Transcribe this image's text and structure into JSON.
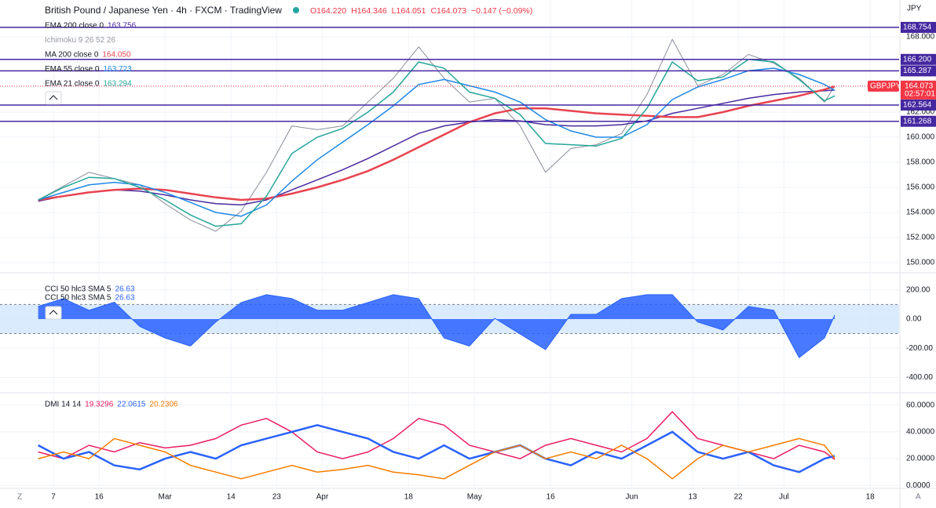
{
  "header": {
    "title": "British Pound / Japanese Yen · 4h · FXCM · TradingView",
    "ohlc": [
      "O164.220",
      "H164.346",
      "L164.051",
      "C164.073",
      "−0.147 (−0.09%)"
    ]
  },
  "ui": {
    "currency": "JPY",
    "z": "Z",
    "a": "A"
  },
  "chart_data": [
    {
      "type": "line",
      "x": [
        4,
        9,
        14,
        19,
        24,
        29,
        34,
        39,
        44,
        49,
        54,
        59,
        64,
        69,
        74,
        79,
        84,
        89,
        94,
        99,
        104,
        109,
        114,
        119,
        124,
        129,
        134,
        139,
        144,
        149,
        154,
        159,
        161
      ],
      "xlim": [
        3.9,
        173.7
      ],
      "ylim": [
        149.25,
        170.625
      ],
      "yticks": [
        {
          "value": 150,
          "label": "150.000"
        },
        {
          "value": 152,
          "label": "152.000"
        },
        {
          "value": 154,
          "label": "154.000"
        },
        {
          "value": 156,
          "label": "156.000"
        },
        {
          "value": 158,
          "label": "158.000"
        },
        {
          "value": 160,
          "label": "160.000"
        },
        {
          "value": 162,
          "label": "162.000"
        },
        {
          "value": 164,
          "label": "164.000"
        },
        {
          "value": 166,
          "label": "166.000"
        },
        {
          "value": 168,
          "label": "168.000"
        }
      ],
      "indicator_hidden": "Ichimoku 9 26 52 26",
      "close": {
        "color": "#8a8f9c",
        "values": [
          155.0,
          156.1,
          157.2,
          156.7,
          156.2,
          154.7,
          153.4,
          152.5,
          154.1,
          157.2,
          160.9,
          160.6,
          160.9,
          162.8,
          164.7,
          167.2,
          164.7,
          162.8,
          163.1,
          160.9,
          157.2,
          159.1,
          159.4,
          160.3,
          163.4,
          167.8,
          164.1,
          165.0,
          166.6,
          165.9,
          164.7,
          162.8,
          164.073
        ]
      },
      "series": [
        {
          "name": "EMA 200 close 0",
          "legend_value": "163.756",
          "color": "#4a2a9e",
          "values": [
            154.9,
            155.3,
            155.6,
            155.8,
            155.7,
            155.4,
            155.0,
            154.7,
            154.6,
            155.0,
            155.8,
            156.6,
            157.4,
            158.3,
            159.3,
            160.3,
            160.9,
            161.2,
            161.4,
            161.3,
            161.0,
            160.9,
            160.9,
            161.0,
            161.3,
            161.9,
            162.3,
            162.7,
            163.1,
            163.4,
            163.6,
            163.7,
            163.756
          ]
        },
        {
          "name": "MA 200 close 0",
          "legend_value": "164.050",
          "color": "#e8434f",
          "values": [
            155.0,
            155.3,
            155.6,
            155.8,
            155.9,
            155.8,
            155.5,
            155.2,
            155.0,
            155.1,
            155.5,
            156.0,
            156.6,
            157.3,
            158.2,
            159.2,
            160.2,
            161.2,
            161.9,
            162.3,
            162.3,
            162.1,
            161.9,
            161.8,
            161.7,
            161.6,
            161.6,
            162.0,
            162.5,
            162.9,
            163.3,
            163.8,
            164.05
          ]
        },
        {
          "name": "EMA 55 close 0",
          "legend_value": "163.723",
          "color": "#1e88e5",
          "values": [
            155.0,
            155.6,
            156.2,
            156.4,
            156.2,
            155.6,
            154.8,
            154.0,
            153.7,
            154.6,
            156.5,
            158.2,
            159.6,
            161.0,
            162.5,
            164.2,
            164.6,
            164.1,
            163.6,
            162.8,
            161.4,
            160.5,
            160.0,
            160.0,
            161.0,
            163.0,
            164.0,
            164.6,
            165.3,
            165.5,
            165.0,
            164.2,
            163.723
          ]
        },
        {
          "name": "EMA 21 close 0",
          "legend_value": "163.294",
          "color": "#26a69a",
          "values": [
            155.0,
            156.0,
            156.8,
            156.7,
            156.0,
            155.0,
            153.8,
            152.9,
            153.1,
            155.3,
            158.7,
            160.0,
            160.7,
            162.0,
            163.6,
            166.0,
            165.5,
            163.6,
            163.1,
            161.8,
            159.5,
            159.4,
            159.3,
            159.9,
            162.3,
            166.0,
            164.5,
            164.8,
            166.2,
            166.0,
            164.6,
            162.9,
            163.294
          ]
        }
      ],
      "levels": [
        {
          "value": 168.754,
          "label": "168.754"
        },
        {
          "value": 166.2,
          "label": "166.200"
        },
        {
          "value": 165.287,
          "label": "165.287"
        },
        {
          "value": 162.564,
          "label": "162.564"
        },
        {
          "value": 161.268,
          "label": "161.268"
        }
      ],
      "level_color": "#4527a0",
      "last_price": {
        "value": 164.073,
        "label": "164.073"
      },
      "symbol_tag": "GBPJPY",
      "countdown": "02:57:01",
      "last_color": "#f23645"
    },
    {
      "type": "area",
      "x": [
        4,
        9,
        14,
        19,
        24,
        29,
        34,
        39,
        44,
        49,
        54,
        59,
        64,
        69,
        74,
        79,
        84,
        89,
        94,
        99,
        104,
        109,
        114,
        119,
        124,
        129,
        134,
        139,
        144,
        149,
        154,
        159,
        161
      ],
      "xlim": [
        3.9,
        173.7
      ],
      "ylim": [
        -500,
        306
      ],
      "yticks": [
        {
          "value": 200,
          "label": "200.00"
        },
        {
          "value": 0,
          "label": "0.00"
        },
        {
          "value": -200,
          "label": "-200.00"
        },
        {
          "value": -400,
          "label": "-400.00"
        }
      ],
      "bands": [
        100,
        -100
      ],
      "band_color": "#cfe6fb",
      "series": [
        {
          "name": "CCI 50 hlc3 SMA 5",
          "legend_value": "26.63",
          "color": "#2962ff",
          "values": [
            86,
            140,
            60,
            115,
            -50,
            -130,
            -185,
            -20,
            113,
            167,
            140,
            60,
            60,
            113,
            167,
            140,
            -130,
            -185,
            5,
            -103,
            -210,
            32,
            32,
            140,
            167,
            167,
            -20,
            -75,
            86,
            60,
            -265,
            -130,
            26.63
          ]
        }
      ]
    },
    {
      "type": "line",
      "title": "DMI 14 14",
      "x": [
        4,
        9,
        14,
        19,
        24,
        29,
        34,
        39,
        44,
        49,
        54,
        59,
        64,
        69,
        74,
        79,
        84,
        89,
        94,
        99,
        104,
        109,
        114,
        119,
        124,
        129,
        134,
        139,
        144,
        149,
        154,
        159,
        161
      ],
      "xlim": [
        3.9,
        173.7
      ],
      "ylim": [
        -1,
        68
      ],
      "yticks": [
        {
          "value": 0,
          "label": "0.0000"
        },
        {
          "value": 20,
          "label": "20.0000"
        },
        {
          "value": 40,
          "label": "40.0000"
        },
        {
          "value": 60,
          "label": "60.0000"
        }
      ],
      "xticks": [
        {
          "value": 7,
          "label": "7"
        },
        {
          "value": 16,
          "label": "16"
        },
        {
          "value": 29,
          "label": "Mar"
        },
        {
          "value": 42,
          "label": "14"
        },
        {
          "value": 51,
          "label": "23"
        },
        {
          "value": 60,
          "label": "Apr"
        },
        {
          "value": 77,
          "label": "18"
        },
        {
          "value": 90,
          "label": "May"
        },
        {
          "value": 105,
          "label": "16"
        },
        {
          "value": 121,
          "label": "Jun"
        },
        {
          "value": 133,
          "label": "13"
        },
        {
          "value": 142,
          "label": "22"
        },
        {
          "value": 151,
          "label": "Jul"
        },
        {
          "value": 168,
          "label": "18"
        }
      ],
      "series": [
        {
          "legend_value": "19.3296",
          "color": "#e91e63",
          "values": [
            25,
            20,
            30,
            25,
            32,
            28,
            30,
            35,
            45,
            50,
            40,
            25,
            20,
            25,
            35,
            50,
            45,
            30,
            25,
            20,
            30,
            35,
            30,
            25,
            35,
            55,
            35,
            30,
            25,
            20,
            30,
            25,
            19.33
          ]
        },
        {
          "legend_value": "22.0615",
          "color": "#2962ff",
          "values": [
            30,
            20,
            25,
            15,
            12,
            20,
            25,
            20,
            30,
            35,
            40,
            45,
            40,
            35,
            25,
            20,
            30,
            20,
            25,
            30,
            20,
            15,
            25,
            20,
            30,
            40,
            25,
            20,
            25,
            15,
            10,
            20,
            22.06
          ]
        },
        {
          "legend_value": "20.2306",
          "color": "#f57c00",
          "values": [
            20,
            25,
            20,
            35,
            30,
            25,
            15,
            10,
            5,
            10,
            15,
            10,
            12,
            15,
            10,
            8,
            5,
            15,
            25,
            30,
            20,
            25,
            20,
            30,
            20,
            5,
            20,
            30,
            25,
            30,
            35,
            30,
            20.23
          ]
        }
      ]
    }
  ]
}
